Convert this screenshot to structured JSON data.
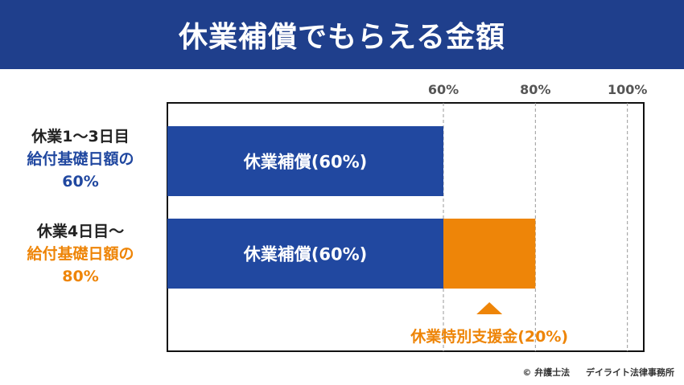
{
  "title": "休業補償でもらえる金額",
  "rows": [
    {
      "line1": "休業1～3日目",
      "line2": "給付基礎日額の",
      "line3": "60%"
    },
    {
      "line1": "休業4日目～",
      "line2": "給付基礎日額の",
      "line3": "80%"
    }
  ],
  "credit": {
    "copyright": "© 弁護士法",
    "firm": "デイライト法律事務所"
  },
  "colors": {
    "title_bg": "#1f3f8c",
    "blue": "#2148a0",
    "orange": "#ee8508"
  },
  "chart_data": {
    "type": "bar",
    "orientation": "horizontal",
    "stacked": true,
    "xlim": [
      0,
      100
    ],
    "ticks": [
      {
        "value": 60,
        "label": "60%"
      },
      {
        "value": 80,
        "label": "80%"
      },
      {
        "value": 100,
        "label": "100%"
      }
    ],
    "grid": "dashed vertical at ticks",
    "bars": [
      {
        "row": 0,
        "segments": [
          {
            "start": 0,
            "end": 60,
            "label": "休業補償(60%)",
            "color": "#2148a0"
          }
        ]
      },
      {
        "row": 1,
        "segments": [
          {
            "start": 0,
            "end": 60,
            "label": "休業補償(60%)",
            "color": "#2148a0"
          },
          {
            "start": 60,
            "end": 80,
            "label": "",
            "color": "#ee8508"
          }
        ]
      }
    ],
    "annotation": {
      "label": "休業特別支援金(20%)",
      "points_to_row": 1,
      "start": 60,
      "end": 80,
      "color": "#ee8508"
    }
  }
}
